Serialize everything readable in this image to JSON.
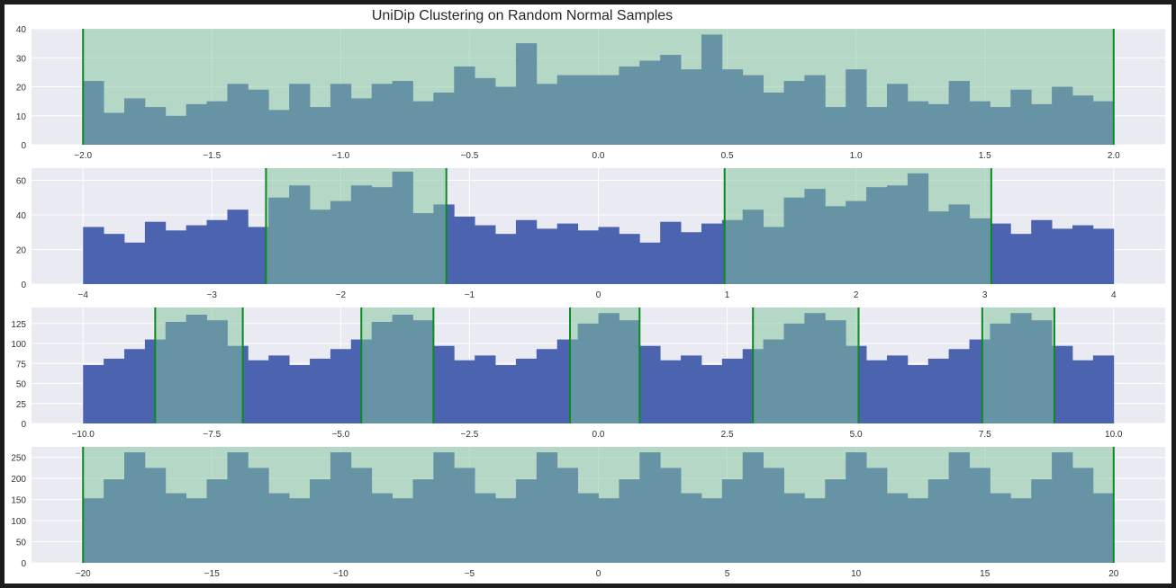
{
  "figure_title": "UniDip Clustering on Random Normal Samples",
  "colors": {
    "axes_bg": "#eaeaf2",
    "grid": "#ffffff",
    "hist_bar": "#4c64b0",
    "interval_fill": "#b3d9bf",
    "overlap_bar": "#33758c",
    "boundary_line": "#0b8a1f",
    "window_border": "#1c1c1c"
  },
  "chart_data": [
    {
      "type": "bar",
      "subtype": "histogram",
      "xlim": [
        -2.2,
        2.2
      ],
      "ylim": [
        0,
        40
      ],
      "xticks": [
        -2.0,
        -1.5,
        -1.0,
        -0.5,
        0.0,
        0.5,
        1.0,
        1.5,
        2.0
      ],
      "xtick_labels": [
        "−2.0",
        "−1.5",
        "−1.0",
        "−0.5",
        "0.0",
        "0.5",
        "1.0",
        "1.5",
        "2.0"
      ],
      "yticks": [
        0,
        10,
        20,
        30,
        40
      ],
      "ytick_labels": [
        "0",
        "10",
        "20",
        "30",
        "40"
      ],
      "bin_range": [
        -2.0,
        2.0
      ],
      "counts": [
        22,
        11,
        16,
        13,
        10,
        14,
        15,
        21,
        19,
        12,
        21,
        13,
        21,
        16,
        21,
        22,
        15,
        18,
        27,
        23,
        20,
        35,
        21,
        24,
        24,
        24,
        27,
        29,
        31,
        26,
        38,
        26,
        24,
        18,
        22,
        24,
        13,
        26,
        13,
        21,
        15,
        14,
        22,
        15,
        13,
        19,
        14,
        20,
        17,
        15
      ],
      "intervals": [
        [
          -2.0,
          2.0
        ]
      ]
    },
    {
      "type": "bar",
      "subtype": "histogram",
      "xlim": [
        -4.4,
        4.4
      ],
      "ylim": [
        0,
        67
      ],
      "xticks": [
        -4,
        -3,
        -2,
        -1,
        0,
        1,
        2,
        3,
        4
      ],
      "xtick_labels": [
        "−4",
        "−3",
        "−2",
        "−1",
        "0",
        "1",
        "2",
        "3",
        "4"
      ],
      "yticks": [
        0,
        20,
        40,
        60
      ],
      "ytick_labels": [
        "0",
        "20",
        "40",
        "60"
      ],
      "bin_range": [
        -4.0,
        4.0
      ],
      "counts": [
        33,
        29,
        24,
        36,
        31,
        34,
        37,
        43,
        33,
        50,
        57,
        43,
        48,
        57,
        56,
        65,
        41,
        46,
        39,
        34,
        29,
        37,
        32,
        35,
        31,
        33,
        29,
        24,
        36,
        30,
        35,
        37,
        43,
        33,
        50,
        55,
        45,
        48,
        56,
        57,
        64,
        42,
        46,
        38,
        35,
        29,
        37,
        32,
        34,
        32
      ],
      "intervals": [
        [
          -2.58,
          -1.18
        ],
        [
          0.98,
          3.05
        ]
      ]
    },
    {
      "type": "bar",
      "subtype": "histogram",
      "xlim": [
        -11.0,
        11.0
      ],
      "ylim": [
        0,
        145
      ],
      "xticks": [
        -10.0,
        -7.5,
        -5.0,
        -2.5,
        0.0,
        2.5,
        5.0,
        7.5,
        10.0
      ],
      "xtick_labels": [
        "−10.0",
        "−7.5",
        "−5.0",
        "−2.5",
        "0.0",
        "2.5",
        "5.0",
        "7.5",
        "10.0"
      ],
      "yticks": [
        0,
        25,
        50,
        75,
        100,
        125
      ],
      "ytick_labels": [
        "0",
        "25",
        "50",
        "75",
        "100",
        "125"
      ],
      "bin_range": [
        -10.0,
        10.0
      ],
      "counts": [
        73,
        81,
        93,
        105,
        127,
        136,
        129,
        97,
        79,
        85,
        73,
        81,
        93,
        105,
        127,
        136,
        129,
        97,
        79,
        85,
        73,
        81,
        93,
        105,
        125,
        138,
        129,
        97,
        79,
        85,
        73,
        81,
        93,
        105,
        125,
        138,
        129,
        97,
        79,
        85,
        73,
        81,
        93,
        105,
        125,
        138,
        129,
        97,
        79,
        85
      ],
      "intervals": [
        [
          -8.6,
          -6.9
        ],
        [
          -4.6,
          -3.2
        ],
        [
          -0.55,
          0.8
        ],
        [
          3.0,
          5.05
        ],
        [
          7.45,
          8.85
        ]
      ]
    },
    {
      "type": "bar",
      "subtype": "histogram",
      "xlim": [
        -22.0,
        22.0
      ],
      "ylim": [
        0,
        275
      ],
      "xticks": [
        -20,
        -15,
        -10,
        -5,
        0,
        5,
        10,
        15,
        20
      ],
      "xtick_labels": [
        "−20",
        "−15",
        "−10",
        "−5",
        "0",
        "5",
        "10",
        "15",
        "20"
      ],
      "yticks": [
        0,
        50,
        100,
        150,
        200,
        250
      ],
      "ytick_labels": [
        "0",
        "50",
        "100",
        "150",
        "200",
        "250"
      ],
      "bin_range": [
        -20.0,
        20.0
      ],
      "counts": [
        153,
        198,
        262,
        225,
        165,
        153,
        198,
        262,
        225,
        165,
        153,
        198,
        262,
        225,
        165,
        153,
        198,
        262,
        225,
        165,
        153,
        198,
        262,
        225,
        165,
        153,
        198,
        262,
        225,
        165,
        153,
        198,
        262,
        225,
        165,
        153,
        198,
        262,
        225,
        165,
        153,
        198,
        262,
        225,
        165,
        153,
        198,
        262,
        225,
        165
      ],
      "intervals": [
        [
          -20.0,
          20.0
        ]
      ]
    }
  ]
}
